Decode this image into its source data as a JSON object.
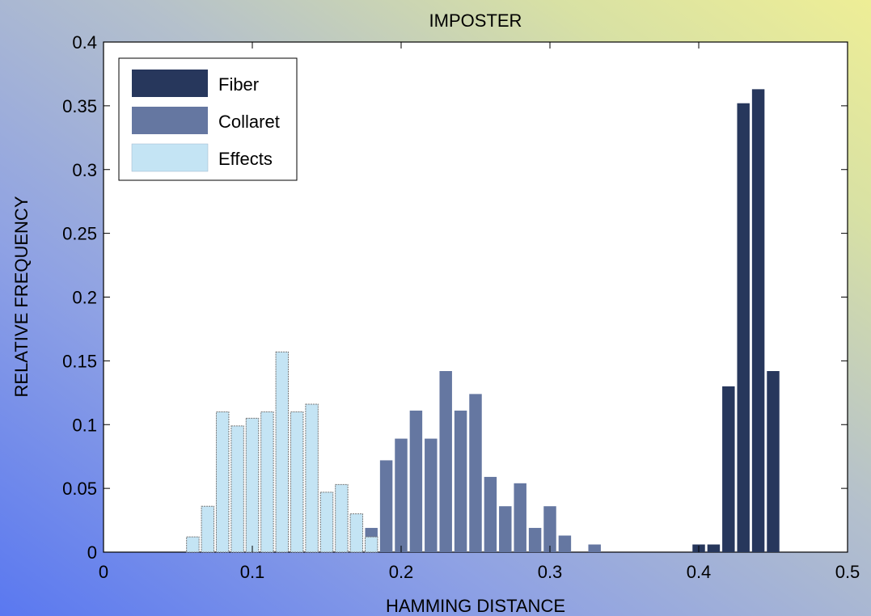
{
  "chart_data": {
    "type": "bar",
    "title": "IMPOSTER",
    "xlabel": "HAMMING  DISTANCE",
    "ylabel": "RELATIVE  FREQUENCY",
    "xlim": [
      0,
      0.5
    ],
    "ylim": [
      0,
      0.4
    ],
    "xticks": [
      "0",
      "0.1",
      "0.2",
      "0.3",
      "0.4",
      "0.5"
    ],
    "yticks": [
      "0",
      "0.05",
      "0.1",
      "0.15",
      "0.2",
      "0.25",
      "0.3",
      "0.35",
      "0.4"
    ],
    "legend_position": "top-left",
    "bin_width": 0.01,
    "series": [
      {
        "name": "Fiber",
        "color": "#27375c",
        "x": [
          0.4,
          0.41,
          0.42,
          0.43,
          0.44,
          0.45
        ],
        "values": [
          0.006,
          0.006,
          0.13,
          0.352,
          0.363,
          0.142
        ]
      },
      {
        "name": "Collaret",
        "color": "#6577a1",
        "x": [
          0.18,
          0.19,
          0.2,
          0.21,
          0.22,
          0.23,
          0.24,
          0.25,
          0.26,
          0.27,
          0.28,
          0.29,
          0.3,
          0.31,
          0.33
        ],
        "values": [
          0.019,
          0.072,
          0.089,
          0.111,
          0.089,
          0.142,
          0.111,
          0.124,
          0.059,
          0.036,
          0.054,
          0.019,
          0.036,
          0.013,
          0.006
        ]
      },
      {
        "name": "Effects",
        "color": "#c4e4f4",
        "x": [
          0.06,
          0.07,
          0.08,
          0.09,
          0.1,
          0.11,
          0.12,
          0.13,
          0.14,
          0.15,
          0.16,
          0.17,
          0.18
        ],
        "values": [
          0.012,
          0.036,
          0.11,
          0.099,
          0.105,
          0.11,
          0.157,
          0.11,
          0.116,
          0.047,
          0.053,
          0.03,
          0.012
        ]
      }
    ]
  }
}
